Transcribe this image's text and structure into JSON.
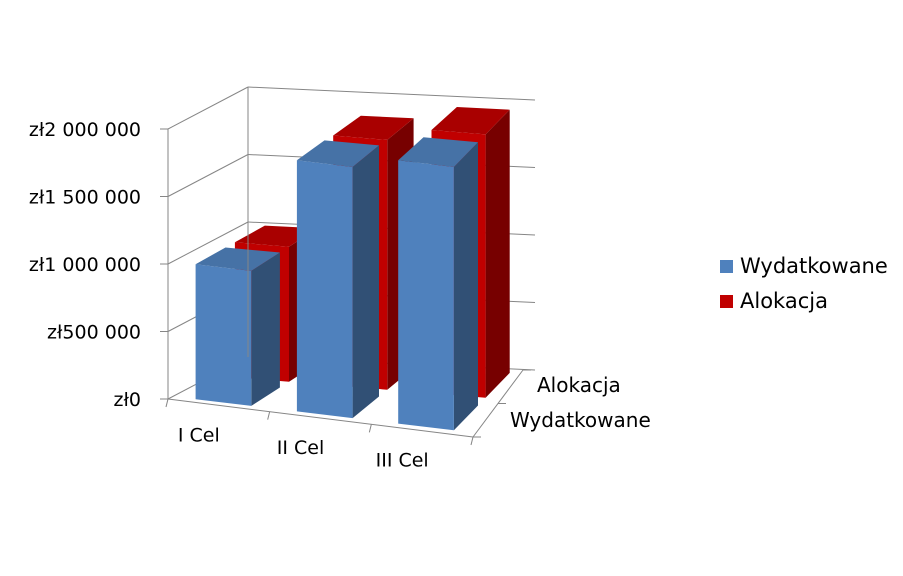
{
  "chart_data": {
    "type": "bar",
    "variant": "3d-column",
    "categories": [
      "I Cel",
      "II Cel",
      "III Cel"
    ],
    "series": [
      {
        "name": "Wydatkowane",
        "values": [
          1000000,
          1860000,
          1950000
        ],
        "color": "#4F81BD"
      },
      {
        "name": "Alokacja",
        "values": [
          1000000,
          1850000,
          1950000
        ],
        "color": "#C00000"
      }
    ],
    "y_ticks": [
      {
        "value": 0,
        "label": "zł0"
      },
      {
        "value": 500000,
        "label": "zł500 000"
      },
      {
        "value": 1000000,
        "label": "zł1 000 000"
      },
      {
        "value": 1500000,
        "label": "zł1 500 000"
      },
      {
        "value": 2000000,
        "label": "zł2 000 000"
      }
    ],
    "depth_labels": [
      "Wydatkowane",
      "Alokacja"
    ],
    "ylim": [
      0,
      2000000
    ],
    "title": "",
    "xlabel": "",
    "ylabel": "",
    "grid": true,
    "legend": "right",
    "legend_items": [
      {
        "label": "Wydatkowane",
        "color": "#4F81BD"
      },
      {
        "label": "Alokacja",
        "color": "#C00000"
      }
    ]
  }
}
